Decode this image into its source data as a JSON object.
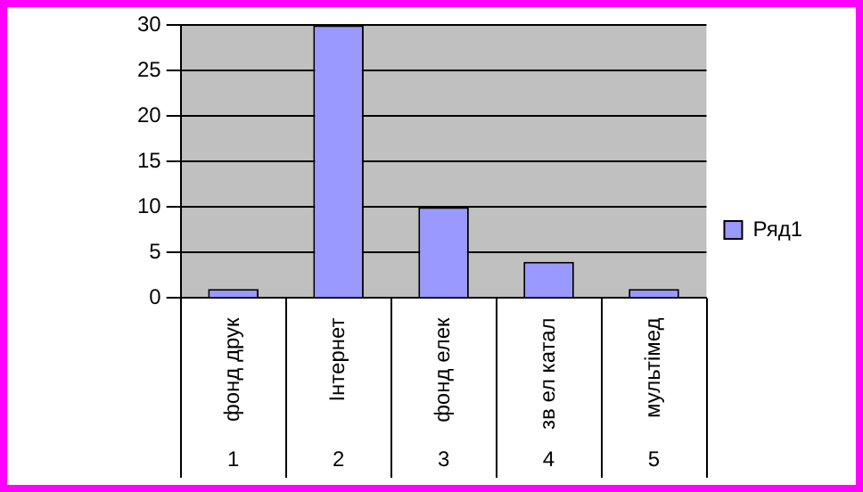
{
  "chart_data": {
    "type": "bar",
    "categories": [
      "фонд друк",
      "Інтернет",
      "фонд елек",
      "зв ел катал",
      "мультімед"
    ],
    "series": [
      {
        "name": "Ряд1",
        "color": "#9999ff",
        "values": [
          1,
          30,
          10,
          4,
          1
        ]
      }
    ],
    "ylim": [
      0,
      30
    ],
    "yticks": [
      0,
      5,
      10,
      15,
      20,
      25,
      30
    ],
    "grid": "y",
    "legend": "right",
    "annotations": [
      "1",
      "2",
      "3",
      "4",
      "5"
    ]
  }
}
